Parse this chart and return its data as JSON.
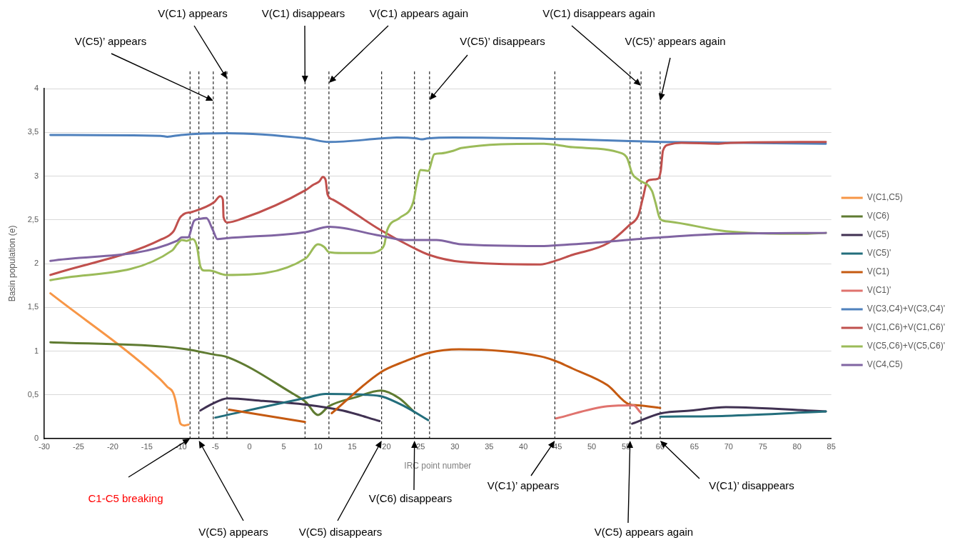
{
  "chart_data": {
    "type": "line",
    "xlabel": "IRC point number",
    "ylabel": "Basin population (e)",
    "xlim": [
      -30,
      85
    ],
    "xticks": [
      -30,
      -25,
      -20,
      -15,
      -10,
      -5,
      0,
      5,
      10,
      15,
      20,
      25,
      30,
      35,
      40,
      45,
      50,
      55,
      60,
      65,
      70,
      75,
      80,
      85
    ],
    "ylim": [
      0,
      4
    ],
    "yticks": [
      0,
      {
        "value": 0.5,
        "label": "0,5"
      },
      1,
      {
        "value": 1.5,
        "label": "1,5"
      },
      2,
      {
        "value": 2.5,
        "label": "2,5"
      },
      3,
      {
        "value": 3.5,
        "label": "3,5"
      },
      4
    ],
    "grid": "y",
    "legend": "right",
    "marker": "none",
    "line_style": "solid",
    "series": [
      {
        "name": "V(C1,C5)",
        "color": "#f79646",
        "x": [
          -29.1,
          -13.1,
          -12,
          -11.2,
          -10.8,
          -10.4,
          -10.1,
          -9.5,
          -8.9
        ],
        "values": [
          1.66,
          0.68,
          0.59,
          0.53,
          0.43,
          0.27,
          0.17,
          0.15,
          0.16
        ]
      },
      {
        "name": "V(C6)",
        "color": "#5f7b31",
        "x": [
          -29.1,
          -12.4,
          -9.2,
          -5.2,
          -3.2,
          6.4,
          8.2,
          10,
          11.6,
          15.4,
          19.2,
          21.9,
          24.1
        ],
        "values": [
          1.1,
          1.05,
          1.02,
          0.96,
          0.93,
          0.51,
          0.42,
          0.27,
          0.37,
          0.47,
          0.55,
          0.46,
          0.3
        ]
      },
      {
        "name": "V(C5)",
        "color": "#403152",
        "x": [
          -7.2,
          -5.6,
          -3.2,
          2,
          8,
          13.6,
          19,
          37,
          55.9,
          60.2,
          64.5,
          69.6,
          84.2
        ],
        "values": [
          0.32,
          0.39,
          0.46,
          0.43,
          0.39,
          0.32,
          0.2,
          null,
          0.17,
          0.29,
          0.32,
          0.36,
          0.31
        ]
      },
      {
        "name": "V(C5)'",
        "color": "#236e7c",
        "x": [
          -5,
          8.5,
          11.1,
          17.2,
          19.4,
          22.6,
          26.1,
          43,
          60,
          69.6,
          84.2
        ],
        "values": [
          0.24,
          0.47,
          0.51,
          0.5,
          0.48,
          0.37,
          0.21,
          null,
          0.25,
          0.26,
          0.31
        ]
      },
      {
        "name": "V(C1)",
        "color": "#c55a11",
        "x": [
          -3,
          8.1,
          10,
          12,
          19.2,
          22.6,
          26.2,
          30.6,
          42.5,
          44.6,
          47.2,
          52.3,
          55.5,
          56.8,
          60
        ],
        "values": [
          0.33,
          0.19,
          null,
          0.29,
          0.76,
          0.88,
          0.98,
          1.02,
          0.94,
          0.89,
          0.8,
          0.61,
          0.39,
          0.38,
          0.35
        ]
      },
      {
        "name": "V(C1)'",
        "color": "#e0736e",
        "x": [
          44.8,
          52.3,
          56.1,
          57.1
        ],
        "values": [
          0.23,
          0.37,
          0.38,
          0.3
        ]
      },
      {
        "name": "V(C3,C4)+V(C3,C4)'",
        "color": "#4f81bd",
        "x": [
          -29.1,
          -13,
          -12,
          -10,
          -3.4,
          8.3,
          11.6,
          19.4,
          21.5,
          24.4,
          25.1,
          26,
          29.8,
          47.2,
          55.5,
          60.2,
          84.2
        ],
        "values": [
          3.47,
          3.46,
          3.45,
          3.47,
          3.49,
          3.43,
          3.39,
          3.43,
          3.44,
          3.43,
          3.42,
          3.43,
          3.44,
          3.42,
          3.4,
          3.39,
          3.37
        ]
      },
      {
        "name": "V(C1,C6)+V(C1,C6)'",
        "color": "#c0504d",
        "x": [
          -29.1,
          -12.8,
          -11.1,
          -10.2,
          -9.5,
          -8.4,
          -5.2,
          -4.3,
          -3.9,
          -3.8,
          -3.2,
          -1.2,
          8.2,
          9.3,
          10.2,
          10.7,
          11.1,
          11.4,
          12.2,
          19,
          23.7,
          26.2,
          30.9,
          42.5,
          44.6,
          47.2,
          52.3,
          55.5,
          56.8,
          57.5,
          58.1,
          58.8,
          59.7,
          60.1,
          60.4,
          61.3,
          63.1,
          68.5,
          70.3,
          84.2
        ],
        "values": [
          1.87,
          2.28,
          2.37,
          2.52,
          2.57,
          2.59,
          2.7,
          2.77,
          2.73,
          2.53,
          2.47,
          2.51,
          2.84,
          2.9,
          2.94,
          2.99,
          2.96,
          2.79,
          2.73,
          2.39,
          2.19,
          2.1,
          2.02,
          1.99,
          2.03,
          2.1,
          2.23,
          2.44,
          2.55,
          2.76,
          2.94,
          2.96,
          2.97,
          3.07,
          3.29,
          3.36,
          3.38,
          3.37,
          3.38,
          3.39
        ]
      },
      {
        "name": "V(C5,C6)+V(C5,C6)'",
        "color": "#9bbb59",
        "x": [
          -29.1,
          -11.3,
          -10.6,
          -9.9,
          -9.2,
          -8.3,
          -7.7,
          -7.2,
          -6.6,
          -5.9,
          -3.4,
          8.2,
          10,
          10.9,
          11.6,
          13.6,
          17.2,
          19.2,
          19.7,
          20.1,
          21.9,
          23.9,
          24.4,
          25,
          26.1,
          27,
          28,
          29.8,
          30.9,
          42.5,
          44.6,
          47.2,
          54.4,
          55.2,
          55.9,
          56.8,
          58.8,
          59.3,
          60,
          61.3,
          69.6,
          81.1,
          84.2
        ],
        "values": [
          1.81,
          2.15,
          2.22,
          2.27,
          2.26,
          2.28,
          2.2,
          1.97,
          1.92,
          1.92,
          1.87,
          2.06,
          2.22,
          2.19,
          2.13,
          2.12,
          2.12,
          2.16,
          2.22,
          2.38,
          2.52,
          2.7,
          2.9,
          3.07,
          3.06,
          3.25,
          3.26,
          3.29,
          3.32,
          3.37,
          3.36,
          3.33,
          3.26,
          3.2,
          3.03,
          2.96,
          2.83,
          2.7,
          2.51,
          2.48,
          2.37,
          2.34,
          2.35
        ]
      },
      {
        "name": "V(C4,C5)",
        "color": "#8064a2",
        "x": [
          -29.1,
          -10.6,
          -9.9,
          -9,
          -8.1,
          -7.4,
          -6.3,
          -5.4,
          -4.7,
          -3.4,
          8.2,
          11.6,
          19,
          22.6,
          27.3,
          30.9,
          42.5,
          47.2,
          60.2,
          69.6,
          84.2
        ],
        "values": [
          2.03,
          2.26,
          2.3,
          2.3,
          2.49,
          2.51,
          2.52,
          2.39,
          2.28,
          2.29,
          2.36,
          2.42,
          2.32,
          2.27,
          2.27,
          2.22,
          2.2,
          2.22,
          2.3,
          2.34,
          2.35
        ]
      }
    ],
    "ref_lines": [
      {
        "axis": "x",
        "value": -8.7,
        "color": "#000000",
        "line_style": "dashed"
      },
      {
        "axis": "x",
        "value": -7.4,
        "color": "#000000",
        "line_style": "dashed"
      },
      {
        "axis": "x",
        "value": -5.3,
        "color": "#000000",
        "line_style": "dashed"
      },
      {
        "axis": "x",
        "value": -3.3,
        "color": "#000000",
        "line_style": "dashed"
      },
      {
        "axis": "x",
        "value": 8.1,
        "color": "#000000",
        "line_style": "dashed"
      },
      {
        "axis": "x",
        "value": 11.6,
        "color": "#000000",
        "line_style": "dashed"
      },
      {
        "axis": "x",
        "value": 19.3,
        "color": "#000000",
        "line_style": "dashed"
      },
      {
        "axis": "x",
        "value": 24.1,
        "color": "#000000",
        "line_style": "dashed"
      },
      {
        "axis": "x",
        "value": 26.3,
        "color": "#000000",
        "line_style": "dashed"
      },
      {
        "axis": "x",
        "value": 44.6,
        "color": "#000000",
        "line_style": "dashed"
      },
      {
        "axis": "x",
        "value": 55.6,
        "color": "#000000",
        "line_style": "dashed"
      },
      {
        "axis": "x",
        "value": 57.2,
        "color": "#000000",
        "line_style": "dashed"
      },
      {
        "axis": "x",
        "value": 60,
        "color": "#000000",
        "line_style": "dashed"
      }
    ],
    "annotations": [
      "V(C1) appears",
      "V(C1) disappears",
      "V(C1) appears again",
      "V(C1) disappears again",
      "V(C5)’ appears",
      "V(C5)’ disappears",
      "V(C5)’ appears again",
      "V(C1)’ appears",
      "V(C1)’ disappears",
      "C1-C5 breaking",
      "V(C6) disappears",
      "V(C5) appears",
      "V(C5) disappears",
      "V(C5) appears again"
    ]
  }
}
